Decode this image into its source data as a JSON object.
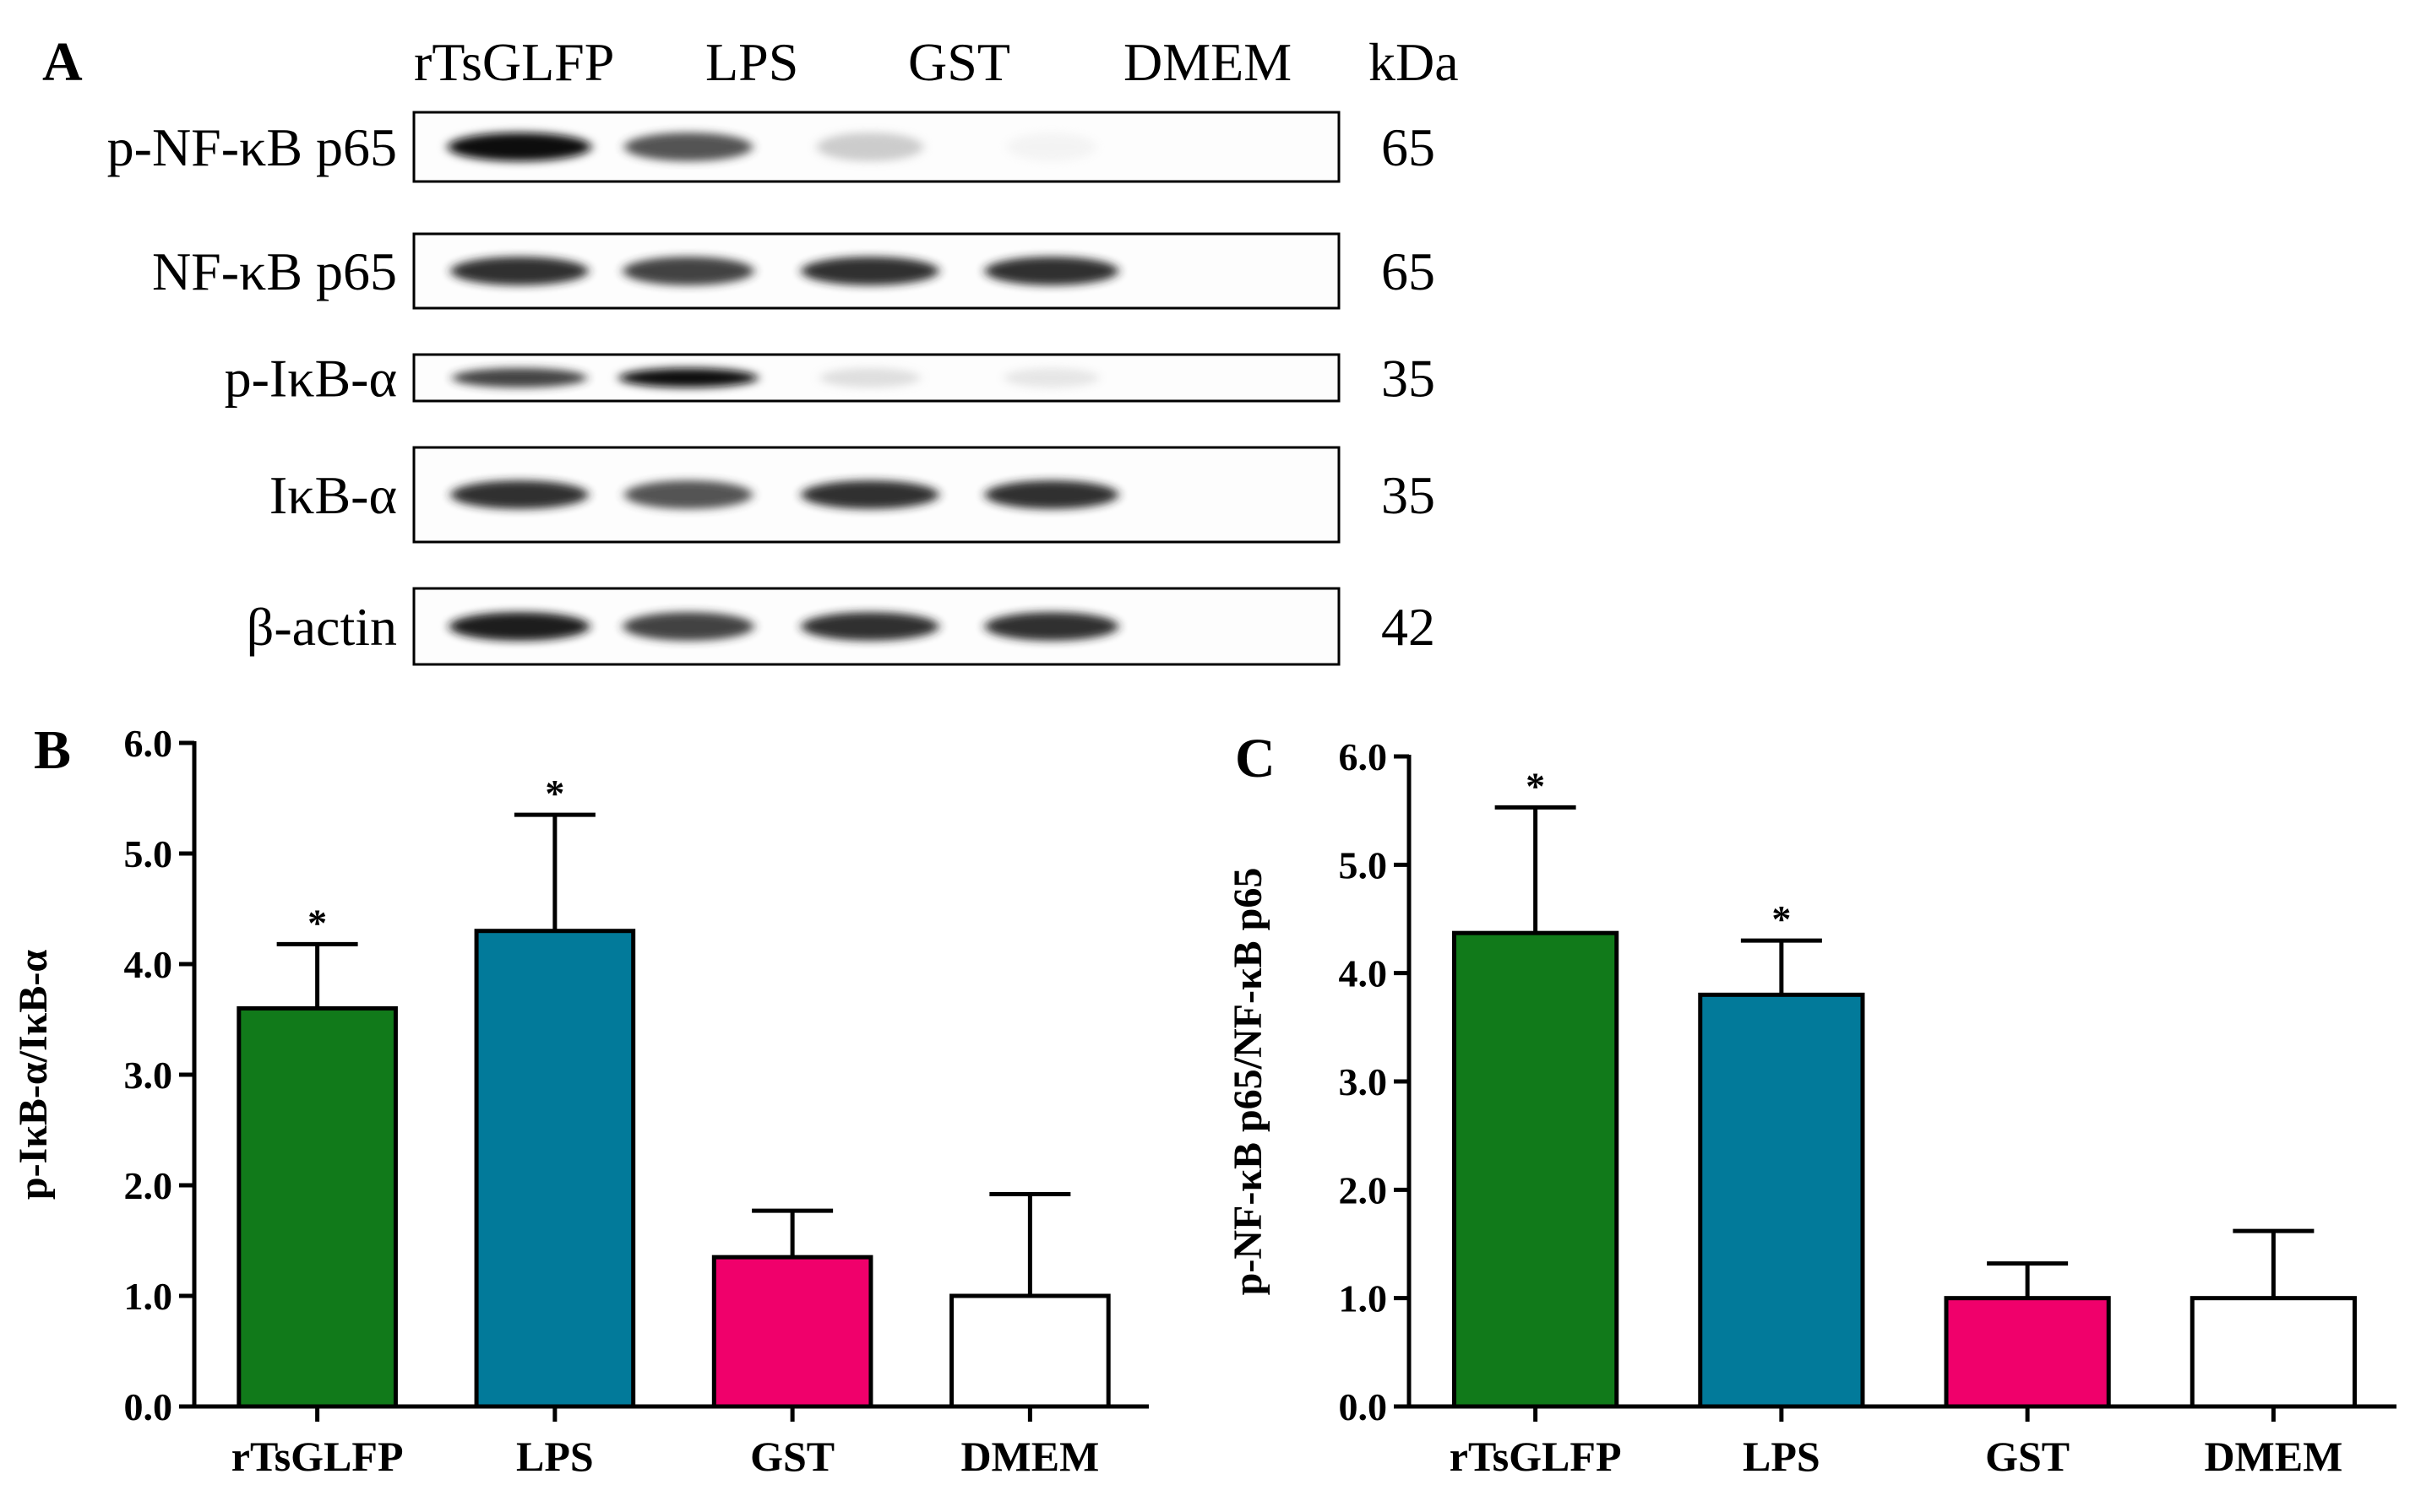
{
  "panel_a": {
    "letter": "A",
    "lanes": [
      "rTsGLFP",
      "LPS",
      "GST",
      "DMEM"
    ],
    "kda_header": "kDa",
    "blots": [
      {
        "label": "p-NF-κB p65",
        "kda": "65",
        "intensity": [
          1.0,
          0.8,
          0.35,
          0.1
        ]
      },
      {
        "label": "NF-κB p65",
        "kda": "65",
        "intensity": [
          0.9,
          0.85,
          0.9,
          0.9
        ]
      },
      {
        "label": "p-IκB-α",
        "kda": "35",
        "intensity": [
          0.85,
          1.0,
          0.25,
          0.2
        ]
      },
      {
        "label": "IκB-α",
        "kda": "35",
        "intensity": [
          0.9,
          0.8,
          0.9,
          0.9
        ]
      },
      {
        "label": "β-actin",
        "kda": "42",
        "intensity": [
          0.95,
          0.85,
          0.9,
          0.9
        ]
      }
    ]
  },
  "chart_data": [
    {
      "panel": "B",
      "type": "bar",
      "categories": [
        "rTsGLFP",
        "LPS",
        "GST",
        "DMEM"
      ],
      "values": [
        3.6,
        4.3,
        1.35,
        1.0
      ],
      "errors": [
        0.58,
        1.05,
        0.42,
        0.92
      ],
      "significance": [
        "*",
        "*",
        "",
        ""
      ],
      "colors": [
        "#117a1a",
        "#027a9a",
        "#f0006b",
        "#ffffff"
      ],
      "ylabel": "p-IκB-α/IκB-α",
      "ylim": [
        0,
        6
      ],
      "yticks": [
        "0.0",
        "1.0",
        "2.0",
        "3.0",
        "4.0",
        "5.0",
        "6.0"
      ]
    },
    {
      "panel": "C",
      "type": "bar",
      "categories": [
        "rTsGLFP",
        "LPS",
        "GST",
        "DMEM"
      ],
      "values": [
        4.37,
        3.8,
        1.0,
        1.0
      ],
      "errors": [
        1.16,
        0.5,
        0.32,
        0.62
      ],
      "significance": [
        "*",
        "*",
        "",
        ""
      ],
      "colors": [
        "#117a1a",
        "#027a9a",
        "#f0006b",
        "#ffffff"
      ],
      "ylabel": "p-NF-κB p65/NF-κB p65",
      "ylim": [
        0,
        6
      ],
      "yticks": [
        "0.0",
        "1.0",
        "2.0",
        "3.0",
        "4.0",
        "5.0",
        "6.0"
      ]
    }
  ]
}
